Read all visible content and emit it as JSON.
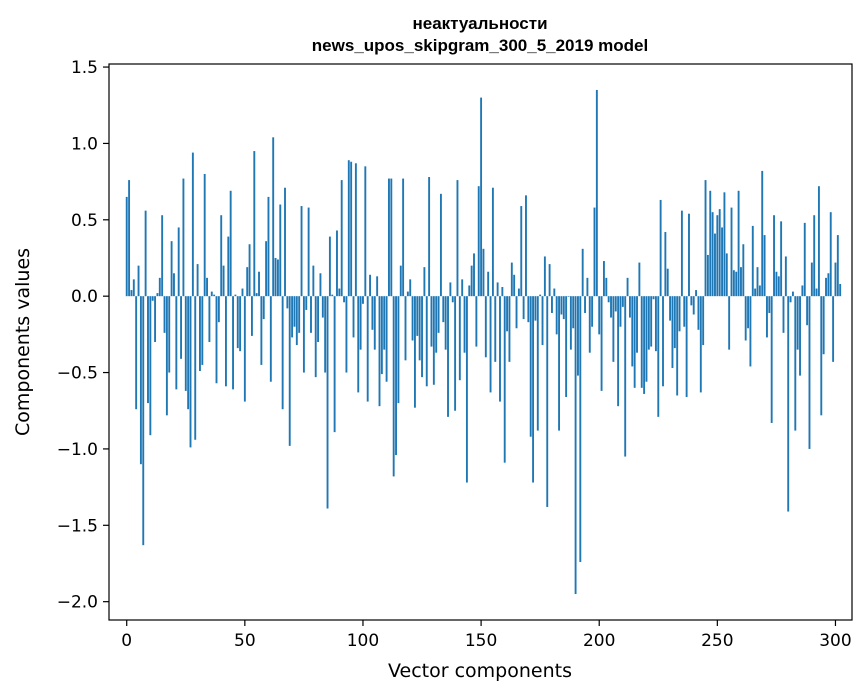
{
  "chart_data": {
    "type": "bar",
    "title": "неактуальности",
    "subtitle": "news_upos_skipgram_300_5_2019 model",
    "xlabel": "Vector components",
    "ylabel": "Components values",
    "xlim": [
      -7.5,
      307
    ],
    "ylim": [
      -2.12,
      1.52
    ],
    "x_ticks": [
      0,
      50,
      100,
      150,
      200,
      250,
      300
    ],
    "y_ticks": [
      -2.0,
      -1.5,
      -1.0,
      -0.5,
      0.0,
      0.5,
      1.0,
      1.5
    ],
    "y_tick_labels": [
      "−2.0",
      "−1.5",
      "−1.0",
      "−0.5",
      "0.0",
      "0.5",
      "1.0",
      "1.5"
    ],
    "bar_color": "#1f77b4",
    "grid": false,
    "values": [
      0.65,
      0.76,
      0.04,
      0.11,
      -0.74,
      0.2,
      -1.1,
      -1.63,
      0.56,
      -0.7,
      -0.91,
      -0.03,
      -0.3,
      0.02,
      0.12,
      0.53,
      -0.24,
      -0.78,
      -0.5,
      0.36,
      0.15,
      -0.61,
      0.45,
      -0.41,
      0.77,
      -0.62,
      -0.74,
      -0.99,
      0.94,
      -0.94,
      0.21,
      -0.49,
      -0.45,
      0.8,
      0.12,
      -0.3,
      0.03,
      0.01,
      -0.57,
      -0.17,
      0.53,
      0.2,
      -0.59,
      0.39,
      0.69,
      -0.61,
      0.01,
      -0.34,
      -0.36,
      0.05,
      -0.69,
      0.19,
      0.34,
      -0.26,
      0.95,
      0.02,
      0.16,
      -0.45,
      -0.15,
      0.36,
      0.65,
      -0.56,
      1.04,
      0.25,
      0.24,
      0.6,
      -0.74,
      0.71,
      -0.08,
      -0.98,
      -0.27,
      -0.2,
      -0.32,
      -0.24,
      0.59,
      -0.5,
      -0.09,
      0.58,
      -0.24,
      0.2,
      -0.53,
      -0.3,
      0.15,
      -0.14,
      -0.5,
      -1.39,
      0.39,
      0.01,
      -0.89,
      0.43,
      0.05,
      0.76,
      -0.04,
      -0.5,
      0.89,
      0.88,
      -0.27,
      0.87,
      -0.63,
      -0.35,
      -0.05,
      0.85,
      -0.69,
      0.14,
      -0.22,
      -0.35,
      0.13,
      -0.72,
      -0.51,
      -0.35,
      -0.56,
      0.77,
      0.77,
      -1.18,
      -1.04,
      -0.7,
      0.2,
      0.77,
      -0.42,
      0.03,
      0.11,
      -0.29,
      -0.73,
      -0.26,
      -0.42,
      -0.53,
      0.19,
      -0.59,
      0.78,
      -0.33,
      -0.58,
      -0.37,
      -0.24,
      0.67,
      -0.17,
      -0.35,
      -0.79,
      0.09,
      -0.04,
      -0.75,
      0.76,
      -0.55,
      0.11,
      -0.37,
      -1.22,
      0.07,
      0.2,
      0.28,
      -0.33,
      0.72,
      1.3,
      0.31,
      -0.4,
      0.16,
      -0.63,
      0.71,
      -0.43,
      0.09,
      -0.69,
      0.06,
      -1.09,
      -0.23,
      -0.43,
      0.22,
      0.14,
      -0.21,
      0.05,
      0.59,
      -0.15,
      0.66,
      -0.17,
      -0.92,
      -1.22,
      -0.16,
      -0.88,
      0.01,
      -0.32,
      0.26,
      -1.38,
      0.21,
      -0.11,
      0.05,
      -0.25,
      -0.88,
      -0.12,
      -0.15,
      -0.66,
      0.0,
      -0.35,
      -0.21,
      -1.95,
      -0.52,
      -1.74,
      0.31,
      -0.11,
      0.12,
      -0.37,
      -0.2,
      0.58,
      1.35,
      -0.25,
      -0.62,
      0.23,
      0.12,
      -0.04,
      -0.14,
      -0.43,
      -0.1,
      -0.72,
      -0.2,
      -0.07,
      -1.05,
      0.12,
      -0.14,
      -0.46,
      -0.6,
      -0.37,
      0.22,
      -0.6,
      -0.64,
      -0.56,
      -0.35,
      -0.33,
      -0.02,
      -0.36,
      -0.79,
      0.63,
      -0.59,
      0.42,
      0.18,
      -0.16,
      -0.47,
      -0.34,
      -0.65,
      -0.23,
      0.56,
      -0.2,
      -0.66,
      0.54,
      -0.06,
      -0.12,
      0.04,
      -0.22,
      -0.63,
      -0.32,
      0.76,
      0.27,
      0.69,
      0.55,
      0.41,
      0.53,
      0.57,
      0.45,
      0.68,
      0.28,
      -0.35,
      0.58,
      0.17,
      0.16,
      0.69,
      0.19,
      0.34,
      -0.29,
      -0.21,
      -0.46,
      0.46,
      0.05,
      0.19,
      0.07,
      0.82,
      0.4,
      -0.27,
      -0.11,
      -0.83,
      0.53,
      0.16,
      0.13,
      0.49,
      -0.24,
      0.26,
      -1.41,
      -0.04,
      0.03,
      -0.88,
      -0.35,
      -0.52,
      0.07,
      0.48,
      -0.19,
      -1.0,
      0.22,
      0.53,
      0.05,
      0.72,
      -0.78,
      -0.38,
      0.12,
      0.15,
      0.55,
      -0.43,
      0.22,
      0.4,
      0.08
    ]
  }
}
